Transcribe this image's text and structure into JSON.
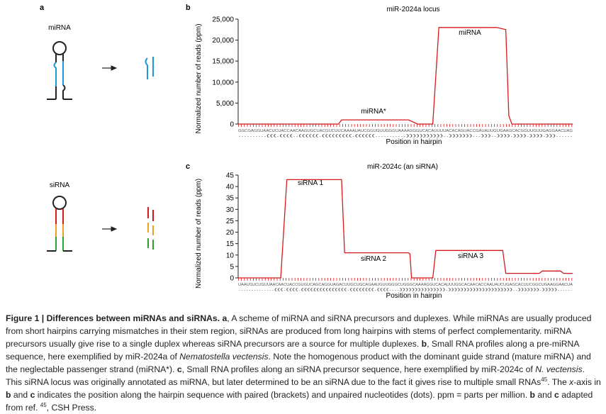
{
  "panels": {
    "a": "a",
    "b": "b",
    "c": "c",
    "mirna": "miRNA",
    "sirna": "siRNA"
  },
  "chart_data": [
    {
      "type": "line",
      "title": "miR-2024a locus",
      "y_label": "Normalized number of reads (ppm)",
      "x_label": "Position in hairpin",
      "x": [
        0,
        33,
        34,
        56,
        59,
        64,
        66,
        85,
        88,
        89,
        90,
        110
      ],
      "values": [
        0,
        0,
        1000,
        1000,
        0,
        0,
        23000,
        23000,
        22500,
        2000,
        0,
        0
      ],
      "color": "#d7191c",
      "xlim": [
        0,
        110
      ],
      "ylim": [
        0,
        25000
      ],
      "yticks": [
        0,
        {
          "value": 5000,
          "label": "5,000"
        },
        {
          "value": 10000,
          "label": "10,000"
        },
        {
          "value": 15000,
          "label": "15,000"
        },
        {
          "value": 20000,
          "label": "20,000"
        },
        {
          "value": 25000,
          "label": "25,000"
        }
      ],
      "sequence": "GGCGAGGUAACUCUACCAACAAGUGCUACGUCUUCAAAAUAUCGGUGUUGGGUAAAAGGGUCACAUUUUACACAGUACCGAUAUUGUGAAGCACGGUUGUUGAGGAACUAG",
      "structure": "..........(((.((((..((((((.(((((((((.((((((...........)))))))))))..)))))))...)))..)))).)))).)))).)))......",
      "annotations": [
        "miRNA",
        "miRNA*"
      ]
    },
    {
      "type": "line",
      "title": "miR-2024c (an siRNA)",
      "y_label": "Normalized number of reads (ppm)",
      "x_label": "Position in hairpin",
      "x": [
        0,
        14,
        16,
        34,
        35,
        56,
        56.5,
        57,
        64,
        65,
        87,
        88,
        99,
        100,
        106,
        107,
        110
      ],
      "values": [
        0,
        0,
        43,
        43,
        11,
        11,
        10.5,
        0,
        0,
        12,
        12,
        2,
        2,
        3,
        3,
        2,
        2
      ],
      "color": "#d7191c",
      "xlim": [
        0,
        110
      ],
      "ylim": [
        0,
        45
      ],
      "yticks": [
        0,
        5,
        10,
        15,
        20,
        25,
        30,
        35,
        40,
        45
      ],
      "sequence": "UAAUGUCUGUUAACAACUACCGUGUCAGCAGGUAGACUUGCUGCAGAAUGUUGGGCUGGGCAAAAGGUCACAUUUGGCACAACACCAAUAUCUGAGCACUUCGGCUGAAGGAACUA",
      "structure": "..............(((.((((.(((((((((((((((.((((((((.((((....))))))))))))))).)))))))))))))))))))))..))))))).)))))......",
      "annotations": [
        "siRNA 1",
        "siRNA 2",
        "siRNA 3"
      ]
    }
  ],
  "caption": [
    "Figure 1 | Differences between miRNAs and siRNAs. a",
    ", A scheme of miRNA and siRNA precursors and duplexes. While miRNAs are usually produced from short hairpins carrying mismatches in their stem region, siRNAs are produced from long hairpins with stems of perfect complementarity. miRNA precursors usually give rise to a single duplex whereas siRNA precursors are a source for multiple duplexes. ",
    "b",
    ", Small RNA profiles along a pre-miRNA sequence, here exemplified by miR-2024a of ",
    "Nematostella vectensis",
    ". Note the homogenous product with the dominant guide strand (mature miRNA) and the neglectable passenger strand (miRNA*). ",
    "c",
    ", Small RNA profiles along an siRNA precursor sequence, here exemplified by miR-2024c of ",
    "N. vectensis",
    ". This siRNA locus was originally annotated as miRNA, but later determined to be an siRNA due to the fact it gives rise to multiple small RNAs",
    "45",
    ". The ",
    "x",
    "-axis in ",
    "b",
    " and ",
    "c",
    " indicates the position along the hairpin sequence with paired (brackets) and unpaired nucleotides (dots). ppm = parts per million. ",
    "b",
    " and ",
    "c",
    " adapted from ref. ",
    "45",
    ", CSH Press."
  ]
}
